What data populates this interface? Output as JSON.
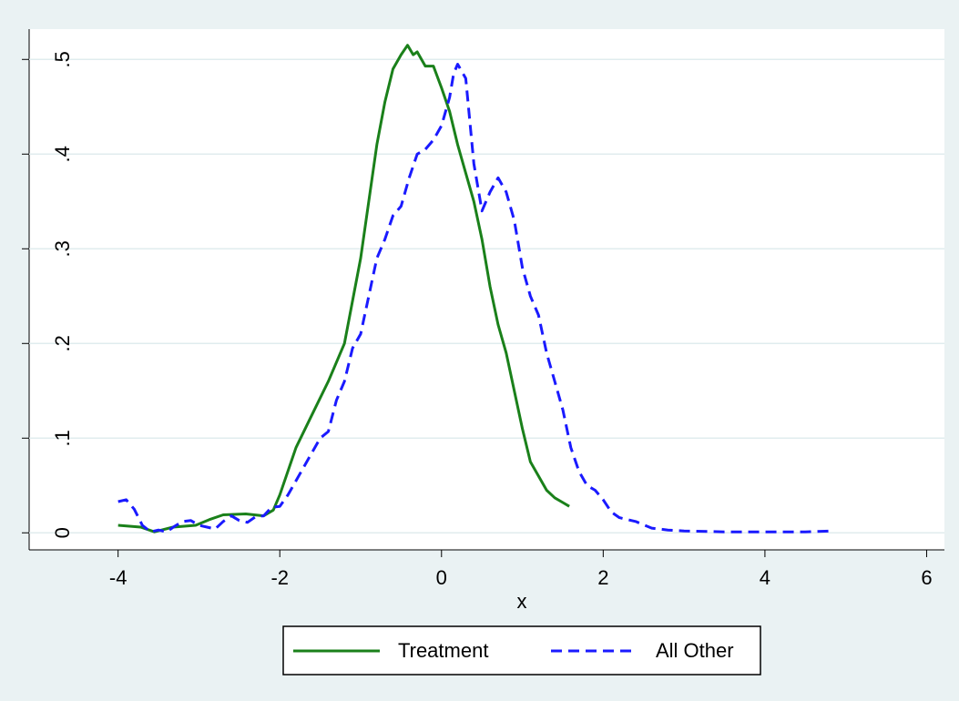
{
  "chart_data": {
    "type": "line",
    "xlabel": "x",
    "xlim": [
      -5.1,
      6.22
    ],
    "ylim": [
      -0.018,
      0.532
    ],
    "xticks": [
      -4,
      -2,
      0,
      2,
      4,
      6
    ],
    "yticks": [
      0,
      {
        "value": 0.1,
        "label": ".1"
      },
      {
        "value": 0.2,
        "label": ".2"
      },
      {
        "value": 0.3,
        "label": ".3"
      },
      {
        "value": 0.4,
        "label": ".4"
      },
      {
        "value": 0.5,
        "label": ".5"
      }
    ],
    "grid": true,
    "legend": "bottom",
    "series": [
      {
        "name": "Treatment",
        "color": "#1a801a",
        "dash": false,
        "x": [
          -4.0,
          -3.72,
          -3.55,
          -3.32,
          -3.04,
          -2.87,
          -2.7,
          -2.42,
          -2.2,
          -2.08,
          -2.0,
          -1.8,
          -1.6,
          -1.4,
          -1.2,
          -1.0,
          -0.9,
          -0.8,
          -0.7,
          -0.6,
          -0.5,
          -0.42,
          -0.35,
          -0.3,
          -0.2,
          -0.1,
          0.0,
          0.1,
          0.2,
          0.3,
          0.4,
          0.5,
          0.6,
          0.7,
          0.8,
          0.9,
          1.0,
          1.1,
          1.2,
          1.3,
          1.4,
          1.5,
          1.58
        ],
        "values": [
          0.008,
          0.006,
          0.001,
          0.006,
          0.008,
          0.014,
          0.019,
          0.02,
          0.018,
          0.024,
          0.04,
          0.09,
          0.125,
          0.16,
          0.2,
          0.29,
          0.35,
          0.41,
          0.455,
          0.49,
          0.505,
          0.515,
          0.505,
          0.508,
          0.493,
          0.493,
          0.47,
          0.445,
          0.41,
          0.38,
          0.35,
          0.31,
          0.26,
          0.22,
          0.19,
          0.15,
          0.11,
          0.075,
          0.06,
          0.045,
          0.037,
          0.032,
          0.028
        ]
      },
      {
        "name": "All Other",
        "color": "#1a1aff",
        "dash": true,
        "x": [
          -4.0,
          -3.9,
          -3.8,
          -3.7,
          -3.6,
          -3.5,
          -3.4,
          -3.3,
          -3.2,
          -3.1,
          -3.0,
          -2.9,
          -2.8,
          -2.7,
          -2.6,
          -2.5,
          -2.4,
          -2.3,
          -2.2,
          -2.1,
          -2.0,
          -1.9,
          -1.8,
          -1.6,
          -1.5,
          -1.4,
          -1.3,
          -1.2,
          -1.1,
          -1.0,
          -0.9,
          -0.8,
          -0.7,
          -0.6,
          -0.5,
          -0.4,
          -0.3,
          -0.2,
          -0.1,
          0.0,
          0.1,
          0.15,
          0.2,
          0.3,
          0.4,
          0.5,
          0.6,
          0.7,
          0.8,
          0.9,
          1.0,
          1.1,
          1.2,
          1.3,
          1.4,
          1.5,
          1.6,
          1.7,
          1.8,
          1.9,
          2.0,
          2.1,
          2.2,
          2.4,
          2.6,
          2.8,
          3.0,
          3.5,
          4.0,
          4.5,
          4.85
        ],
        "values": [
          0.033,
          0.035,
          0.025,
          0.008,
          0.001,
          0.003,
          0.001,
          0.007,
          0.012,
          0.013,
          0.008,
          0.006,
          0.004,
          0.012,
          0.018,
          0.013,
          0.011,
          0.017,
          0.018,
          0.027,
          0.028,
          0.04,
          0.055,
          0.085,
          0.1,
          0.107,
          0.14,
          0.16,
          0.195,
          0.21,
          0.25,
          0.29,
          0.31,
          0.335,
          0.345,
          0.375,
          0.4,
          0.405,
          0.415,
          0.43,
          0.46,
          0.485,
          0.495,
          0.48,
          0.39,
          0.34,
          0.36,
          0.375,
          0.36,
          0.33,
          0.28,
          0.25,
          0.23,
          0.19,
          0.16,
          0.13,
          0.09,
          0.065,
          0.05,
          0.045,
          0.035,
          0.022,
          0.016,
          0.012,
          0.005,
          0.003,
          0.002,
          0.001,
          0.001,
          0.001,
          0.002
        ]
      }
    ]
  }
}
